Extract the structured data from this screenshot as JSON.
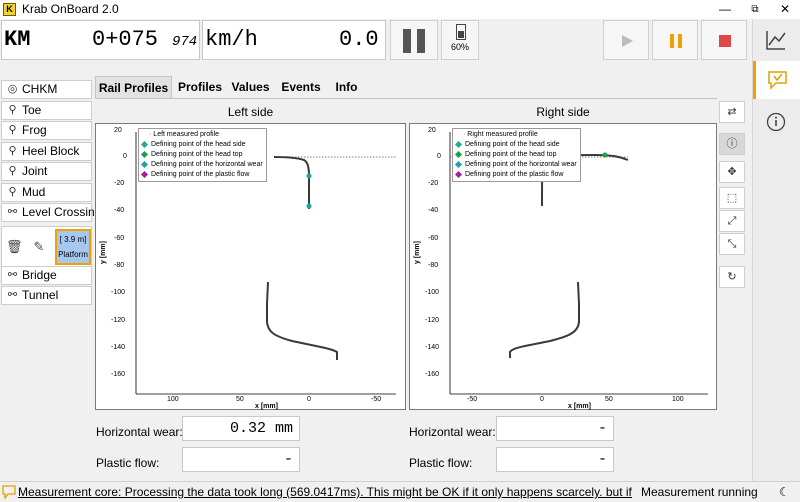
{
  "window": {
    "title": "Krab OnBoard 2.0",
    "icon_text": "K",
    "minimize": "—",
    "restore": "⧉",
    "close": "✕"
  },
  "odometer": {
    "unit_label": "KM",
    "km": "0+075",
    "fraction": "974",
    "speed_unit": "km/h",
    "speed_value": "0.0"
  },
  "battery": {
    "percent": "60%",
    "level": 0.6
  },
  "controls": {
    "play_color": "#bcbcbc",
    "pause_color": "#f0a000",
    "stop_color": "#e04848"
  },
  "sidebar": {
    "items": [
      {
        "label": "CHKM",
        "icon": "crosshair-icon"
      },
      {
        "label": "Toe",
        "icon": "location-pin-icon"
      },
      {
        "label": "Frog",
        "icon": "location-pin-icon"
      },
      {
        "label": "Heel Block",
        "icon": "location-pin-icon"
      },
      {
        "label": "Joint",
        "icon": "location-pin-icon"
      },
      {
        "label": "Mud",
        "icon": "location-pin-icon"
      },
      {
        "label": "Level Crossing",
        "icon": "range-icon"
      }
    ],
    "platform": {
      "length": "[   3.9 m]",
      "label": "Platform"
    },
    "items_after": [
      {
        "label": "Bridge",
        "icon": "range-icon"
      },
      {
        "label": "Tunnel",
        "icon": "range-icon"
      }
    ]
  },
  "tabs": [
    {
      "label": "Rail Profiles",
      "active": true
    },
    {
      "label": "Profiles",
      "active": false
    },
    {
      "label": "Values",
      "active": false
    },
    {
      "label": "Events",
      "active": false
    },
    {
      "label": "Info",
      "active": false
    }
  ],
  "plots": {
    "left": {
      "title": "Left side",
      "legend": [
        {
          "label": "Left measured profile",
          "color": "#555555"
        },
        {
          "label": "Defining point of the head side",
          "color": "#1fae8f"
        },
        {
          "label": "Defining point of the head top",
          "color": "#1f9e4a"
        },
        {
          "label": "Defining point of the horizontal wear",
          "color": "#1aa6a6"
        },
        {
          "label": "Defining point of the plastic flow",
          "color": "#a020a0"
        }
      ],
      "xlabel": "x [mm]",
      "ylabel": "y [mm]",
      "xticks": [
        "100",
        "50",
        "0",
        "-50"
      ],
      "yticks": [
        "20",
        "0",
        "-20",
        "-40",
        "-60",
        "-80",
        "-100",
        "-120",
        "-140",
        "-160"
      ]
    },
    "right": {
      "title": "Right side",
      "legend": [
        {
          "label": "Right measured profile",
          "color": "#555555"
        },
        {
          "label": "Defining point of the head side",
          "color": "#1fae8f"
        },
        {
          "label": "Defining point of the head top",
          "color": "#1f9e4a"
        },
        {
          "label": "Defining point of the horizontal wear",
          "color": "#1aa6a6"
        },
        {
          "label": "Defining point of the plastic flow",
          "color": "#a020a0"
        }
      ],
      "xlabel": "x [mm]",
      "ylabel": "y [mm]",
      "xticks": [
        "-50",
        "0",
        "50",
        "100"
      ],
      "yticks": [
        "20",
        "0",
        "-20",
        "-40",
        "-60",
        "-80",
        "-100",
        "-120",
        "-140",
        "-160"
      ]
    }
  },
  "measurements": {
    "left": {
      "hw_label": "Horizontal wear:",
      "hw_value": "0.32 mm",
      "pf_label": "Plastic flow:",
      "pf_value": "-"
    },
    "right": {
      "hw_label": "Horizontal wear:",
      "hw_value": "-",
      "pf_label": "Plastic flow:",
      "pf_value": "-"
    }
  },
  "status": {
    "message": "Measurement core: Processing the data took long (569.0417ms). This might be OK if it only happens scarcely. but if it happe",
    "state": "Measurement running"
  }
}
